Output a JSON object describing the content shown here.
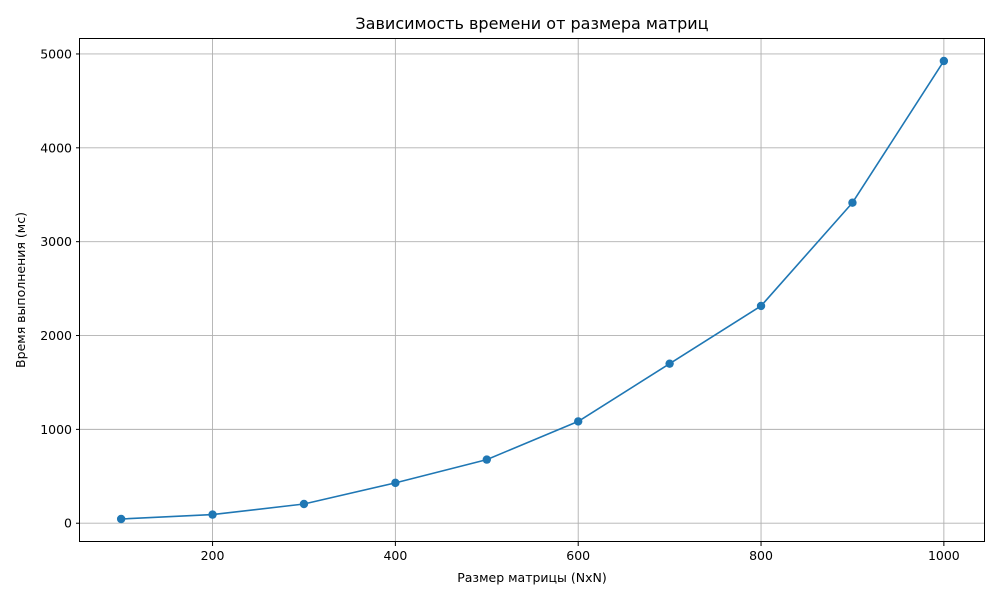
{
  "chart_data": {
    "type": "line",
    "title": "Зависимость времени от размера матриц",
    "xlabel": "Размер матрицы (NxN)",
    "ylabel": "Время выполнения (мс)",
    "x": [
      100,
      200,
      300,
      400,
      500,
      600,
      700,
      800,
      900,
      1000
    ],
    "series": [
      {
        "values": [
          45,
          92,
          205,
          430,
          678,
          1085,
          1700,
          2315,
          3415,
          4925
        ]
      }
    ],
    "xlim": [
      55,
      1045
    ],
    "ylim": [
      -200,
      5170
    ],
    "xticks": [
      200,
      400,
      600,
      800,
      1000
    ],
    "yticks": [
      0,
      1000,
      2000,
      3000,
      4000,
      5000
    ],
    "grid": true,
    "marker": "circle",
    "line_color": "#1f77b4"
  }
}
